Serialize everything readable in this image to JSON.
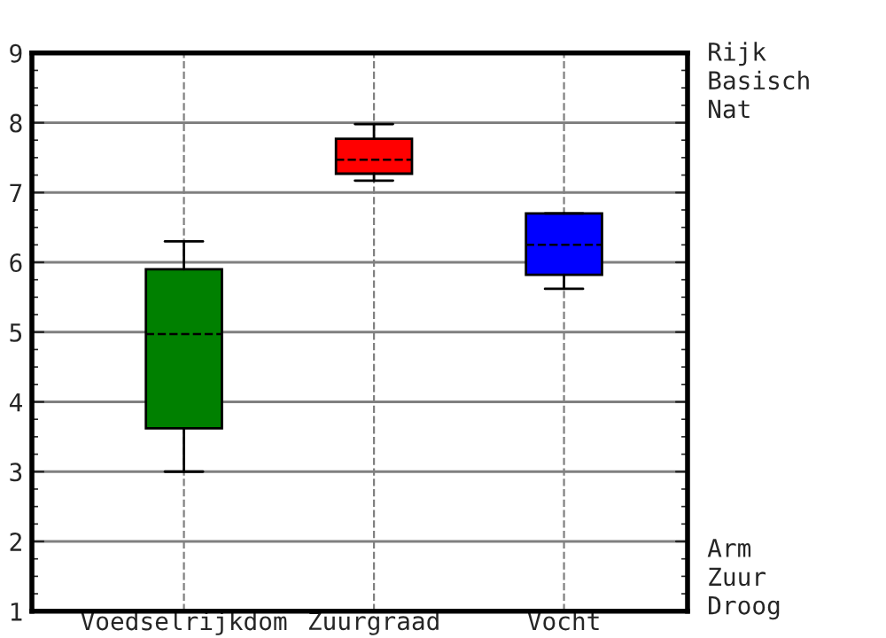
{
  "chart_data": {
    "type": "box",
    "categories": [
      "Voedselrijkdom",
      "Zuurgraad",
      "Vocht"
    ],
    "boxes": [
      {
        "low": 3.0,
        "q1": 3.62,
        "median": 4.97,
        "q3": 5.9,
        "high": 6.3
      },
      {
        "low": 7.17,
        "q1": 7.27,
        "median": 7.47,
        "q3": 7.77,
        "high": 7.98
      },
      {
        "low": 5.62,
        "q1": 5.82,
        "median": 6.25,
        "q3": 6.7,
        "high": 6.7
      }
    ],
    "colors": [
      "#008000",
      "#ff0000",
      "#0000ff"
    ],
    "ylim": [
      1,
      9
    ],
    "yticks": [
      1,
      2,
      3,
      4,
      5,
      6,
      7,
      8,
      9
    ],
    "grid": true,
    "annotations": [
      "Rijk\nBasisch\nNat",
      "Arm\nZuur\nDroog"
    ]
  }
}
